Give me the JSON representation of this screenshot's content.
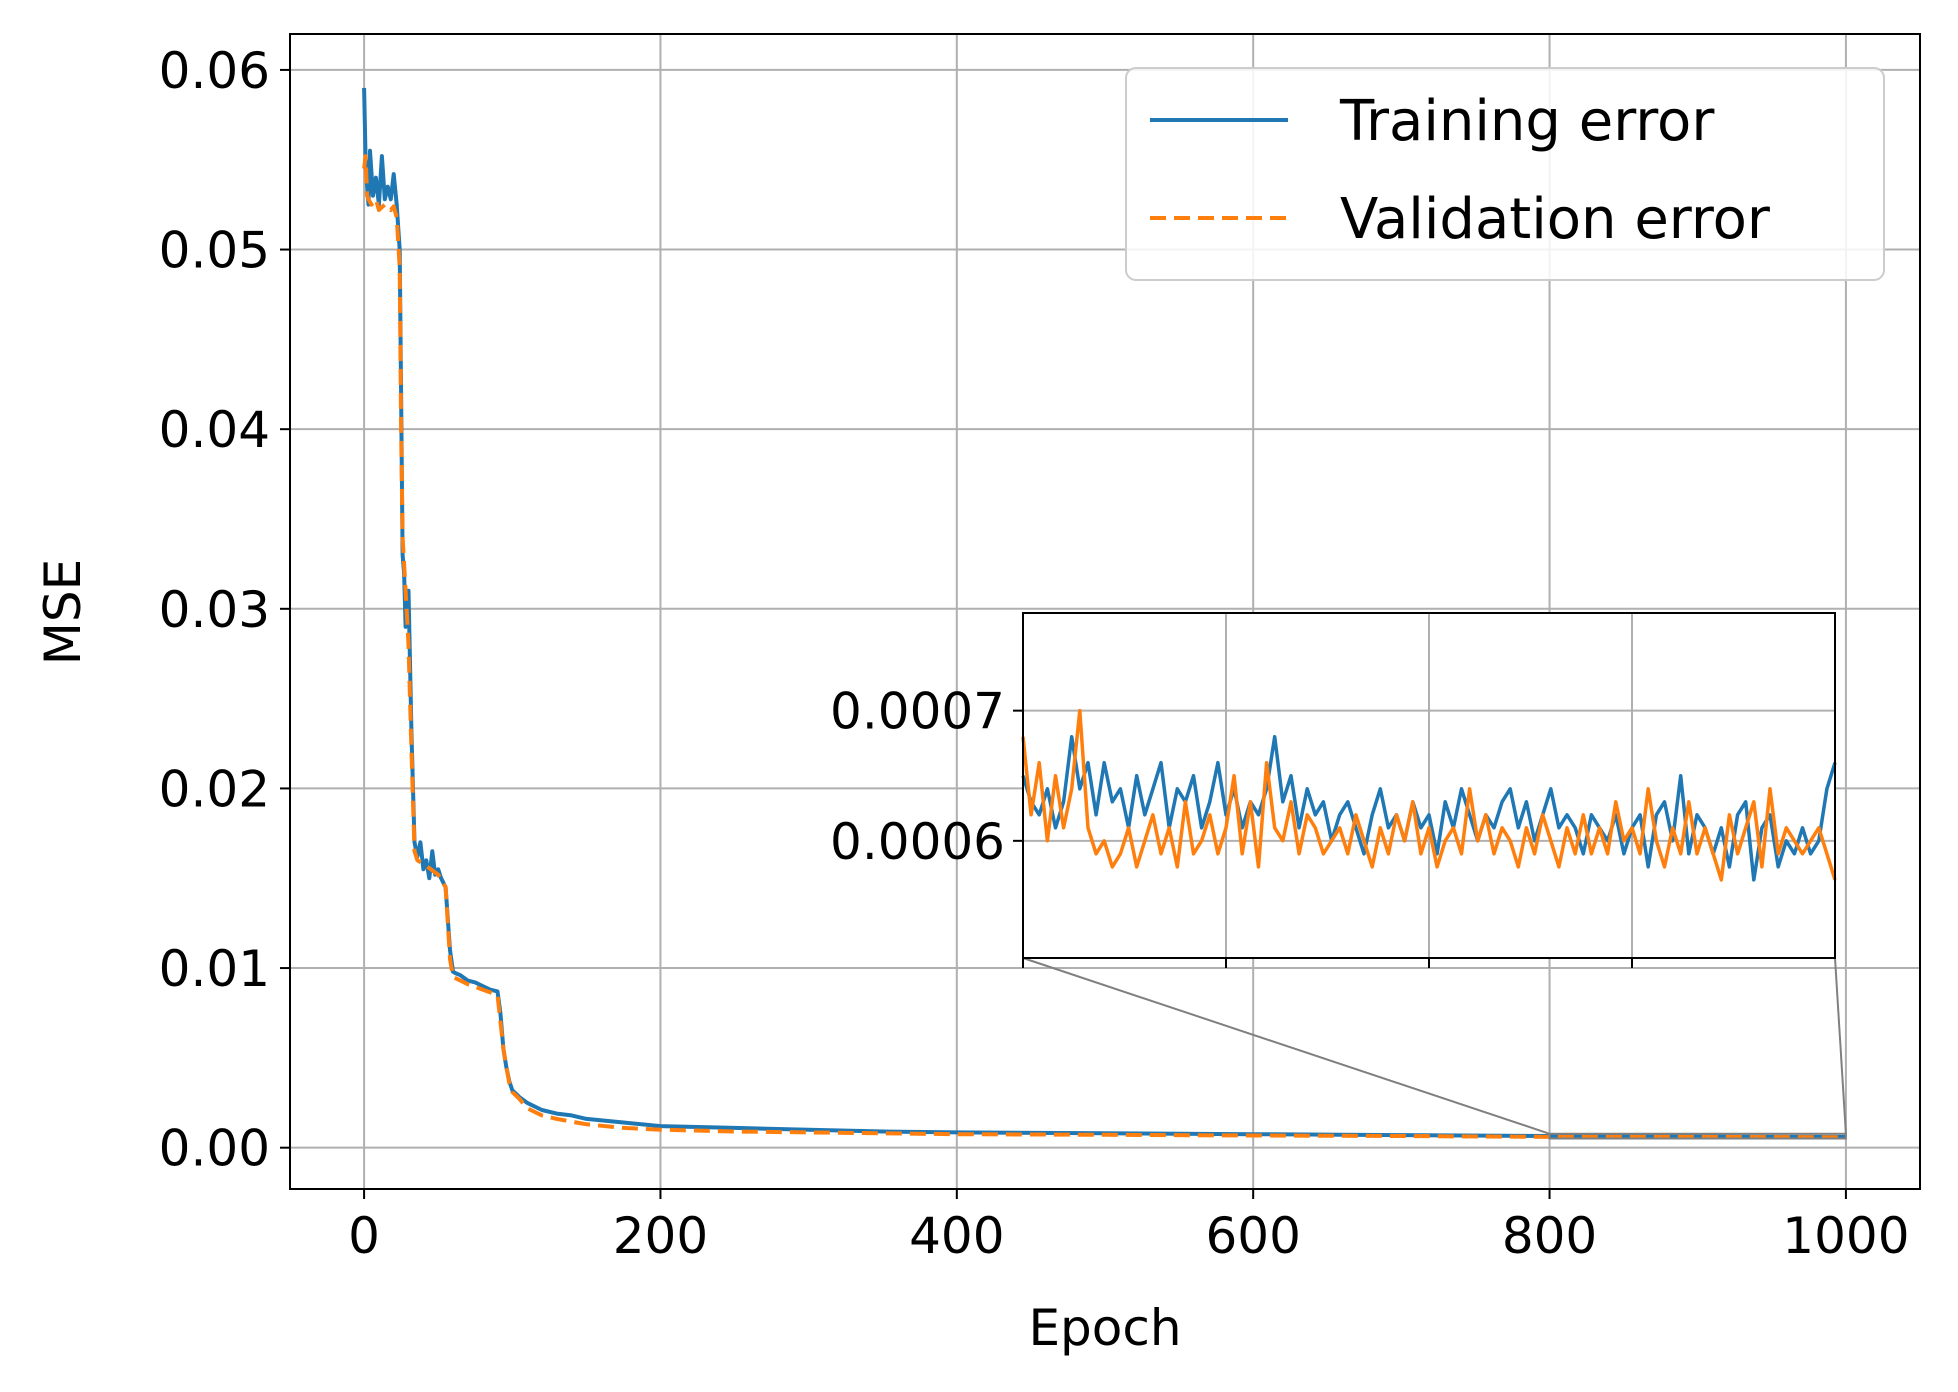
{
  "chart_data": {
    "type": "line",
    "title": "",
    "xlabel": "Epoch",
    "ylabel": "MSE",
    "xlim": [
      -50,
      1050
    ],
    "ylim": [
      -0.0023,
      0.062
    ],
    "grid": true,
    "xticks": [
      "0",
      "200",
      "400",
      "600",
      "800",
      "1000"
    ],
    "xtick_values": [
      0,
      200,
      400,
      600,
      800,
      1000
    ],
    "yticks": [
      "0.00",
      "0.01",
      "0.02",
      "0.03",
      "0.04",
      "0.05",
      "0.06"
    ],
    "ytick_values": [
      0,
      0.01,
      0.02,
      0.03,
      0.04,
      0.05,
      0.06
    ],
    "legend": {
      "position": "top-right",
      "entries": [
        "Training error",
        "Validation error"
      ]
    },
    "series": [
      {
        "name": "Training error",
        "color": "#1f77b4",
        "style": "solid",
        "x": [
          0,
          1,
          2,
          3,
          4,
          6,
          8,
          10,
          12,
          14,
          16,
          18,
          20,
          22,
          24,
          25,
          26,
          27,
          28,
          30,
          32,
          34,
          36,
          38,
          40,
          42,
          44,
          46,
          48,
          50,
          52,
          55,
          58,
          60,
          62,
          65,
          70,
          75,
          80,
          85,
          90,
          92,
          94,
          96,
          98,
          100,
          105,
          110,
          120,
          130,
          140,
          150,
          175,
          200,
          250,
          300,
          350,
          400,
          500,
          600,
          700,
          800,
          900,
          1000
        ],
        "values": [
          0.059,
          0.055,
          0.0535,
          0.0525,
          0.0555,
          0.053,
          0.054,
          0.0525,
          0.0552,
          0.0528,
          0.0535,
          0.0528,
          0.0542,
          0.0525,
          0.05,
          0.042,
          0.033,
          0.032,
          0.029,
          0.031,
          0.023,
          0.017,
          0.0162,
          0.017,
          0.0155,
          0.016,
          0.015,
          0.0165,
          0.0152,
          0.0155,
          0.015,
          0.0145,
          0.011,
          0.0098,
          0.0097,
          0.0096,
          0.0093,
          0.0092,
          0.009,
          0.0088,
          0.0087,
          0.0075,
          0.0055,
          0.0045,
          0.0037,
          0.0032,
          0.0028,
          0.0025,
          0.0021,
          0.0019,
          0.0018,
          0.0016,
          0.0014,
          0.0012,
          0.0011,
          0.001,
          0.0009,
          0.00085,
          0.0008,
          0.00075,
          0.0007,
          0.00065,
          0.00062,
          0.0006
        ]
      },
      {
        "name": "Validation error",
        "color": "#ff7f0e",
        "style": "dashed",
        "x": [
          0,
          1,
          2,
          3,
          5,
          8,
          10,
          14,
          18,
          20,
          22,
          24,
          25,
          26,
          28,
          30,
          32,
          34,
          36,
          40,
          45,
          50,
          55,
          58,
          60,
          65,
          70,
          80,
          90,
          94,
          96,
          98,
          100,
          105,
          110,
          120,
          130,
          150,
          175,
          200,
          250,
          300,
          350,
          400,
          500,
          600,
          700,
          800,
          900,
          1000
        ],
        "values": [
          0.0545,
          0.0552,
          0.053,
          0.0528,
          0.0525,
          0.0528,
          0.0522,
          0.0525,
          0.0522,
          0.0524,
          0.0518,
          0.049,
          0.04,
          0.034,
          0.031,
          0.028,
          0.022,
          0.0165,
          0.016,
          0.0158,
          0.0155,
          0.0152,
          0.0145,
          0.0105,
          0.0095,
          0.0093,
          0.0091,
          0.0088,
          0.0085,
          0.0055,
          0.0045,
          0.0036,
          0.0031,
          0.0027,
          0.0022,
          0.0018,
          0.0016,
          0.0013,
          0.0011,
          0.001,
          0.0009,
          0.00085,
          0.0008,
          0.00075,
          0.00072,
          0.00068,
          0.00065,
          0.0006,
          0.0006,
          0.00058
        ]
      }
    ],
    "inset": {
      "xlim": [
        800,
        1000
      ],
      "ylim": [
        0.00051,
        0.000775
      ],
      "ytick_values": [
        0.0006,
        0.0007
      ],
      "yticks": [
        "0.0006",
        "0.0007"
      ],
      "xtick_values": [
        850,
        900,
        950
      ],
      "grid": true,
      "series": [
        {
          "name": "Training error",
          "color": "#1f77b4",
          "x": [
            800,
            802,
            804,
            806,
            808,
            810,
            812,
            814,
            816,
            818,
            820,
            822,
            824,
            826,
            828,
            830,
            832,
            834,
            836,
            838,
            840,
            842,
            844,
            846,
            848,
            850,
            852,
            854,
            856,
            858,
            860,
            862,
            864,
            866,
            868,
            870,
            872,
            874,
            876,
            878,
            880,
            882,
            884,
            886,
            888,
            890,
            892,
            894,
            896,
            898,
            900,
            902,
            904,
            906,
            908,
            910,
            912,
            914,
            916,
            918,
            920,
            922,
            924,
            926,
            928,
            930,
            932,
            934,
            936,
            938,
            940,
            942,
            944,
            946,
            948,
            950,
            952,
            954,
            956,
            958,
            960,
            962,
            964,
            966,
            968,
            970,
            972,
            974,
            976,
            978,
            980,
            982,
            984,
            986,
            988,
            990,
            992,
            994,
            996,
            998,
            1000
          ],
          "values": [
            0.00065,
            0.00063,
            0.00062,
            0.00064,
            0.00061,
            0.00063,
            0.00068,
            0.00064,
            0.00066,
            0.00062,
            0.00066,
            0.00063,
            0.00064,
            0.00061,
            0.00065,
            0.00062,
            0.00064,
            0.00066,
            0.00061,
            0.00064,
            0.00063,
            0.00065,
            0.00061,
            0.00063,
            0.00066,
            0.00062,
            0.00064,
            0.00061,
            0.00063,
            0.00062,
            0.00064,
            0.00068,
            0.00063,
            0.00065,
            0.00061,
            0.00064,
            0.00062,
            0.00063,
            0.0006,
            0.00062,
            0.00063,
            0.00061,
            0.00059,
            0.00062,
            0.00064,
            0.00061,
            0.00062,
            0.0006,
            0.00063,
            0.00061,
            0.00062,
            0.00059,
            0.00063,
            0.00061,
            0.00064,
            0.00062,
            0.0006,
            0.00062,
            0.00061,
            0.00063,
            0.00064,
            0.00061,
            0.00063,
            0.0006,
            0.00062,
            0.00064,
            0.00061,
            0.00062,
            0.00061,
            0.00059,
            0.00062,
            0.00061,
            0.0006,
            0.00062,
            0.00059,
            0.00061,
            0.00062,
            0.00058,
            0.00062,
            0.00063,
            0.0006,
            0.00065,
            0.00059,
            0.00062,
            0.00061,
            0.00059,
            0.00061,
            0.00058,
            0.00062,
            0.00063,
            0.00057,
            0.00061,
            0.00062,
            0.00058,
            0.0006,
            0.00059,
            0.00061,
            0.00059,
            0.0006,
            0.00064,
            0.00066
          ]
        },
        {
          "name": "Validation error",
          "color": "#ff7f0e",
          "x": [
            800,
            802,
            804,
            806,
            808,
            810,
            812,
            814,
            816,
            818,
            820,
            822,
            824,
            826,
            828,
            830,
            832,
            834,
            836,
            838,
            840,
            842,
            844,
            846,
            848,
            850,
            852,
            854,
            856,
            858,
            860,
            862,
            864,
            866,
            868,
            870,
            872,
            874,
            876,
            878,
            880,
            882,
            884,
            886,
            888,
            890,
            892,
            894,
            896,
            898,
            900,
            902,
            904,
            906,
            908,
            910,
            912,
            914,
            916,
            918,
            920,
            922,
            924,
            926,
            928,
            930,
            932,
            934,
            936,
            938,
            940,
            942,
            944,
            946,
            948,
            950,
            952,
            954,
            956,
            958,
            960,
            962,
            964,
            966,
            968,
            970,
            972,
            974,
            976,
            978,
            980,
            982,
            984,
            986,
            988,
            990,
            992,
            994,
            996,
            998,
            1000
          ],
          "values": [
            0.00068,
            0.00062,
            0.00066,
            0.0006,
            0.00065,
            0.00061,
            0.00064,
            0.0007,
            0.00061,
            0.00059,
            0.0006,
            0.00058,
            0.00059,
            0.00061,
            0.00058,
            0.0006,
            0.00062,
            0.00059,
            0.00061,
            0.00058,
            0.00063,
            0.00059,
            0.0006,
            0.00062,
            0.00059,
            0.00061,
            0.00065,
            0.00059,
            0.00063,
            0.00058,
            0.00066,
            0.00061,
            0.0006,
            0.00063,
            0.00059,
            0.00062,
            0.00061,
            0.00059,
            0.0006,
            0.00061,
            0.00059,
            0.00062,
            0.0006,
            0.00058,
            0.00061,
            0.00059,
            0.00062,
            0.0006,
            0.00063,
            0.00059,
            0.00061,
            0.00058,
            0.0006,
            0.00061,
            0.00059,
            0.00064,
            0.0006,
            0.00062,
            0.00059,
            0.00061,
            0.0006,
            0.00058,
            0.00061,
            0.00059,
            0.00062,
            0.0006,
            0.00058,
            0.00061,
            0.00059,
            0.00062,
            0.00059,
            0.00061,
            0.00059,
            0.00063,
            0.0006,
            0.00061,
            0.00059,
            0.00064,
            0.0006,
            0.00058,
            0.00061,
            0.00059,
            0.00063,
            0.00059,
            0.00061,
            0.00059,
            0.00057,
            0.00062,
            0.00059,
            0.00061,
            0.00063,
            0.00058,
            0.00064,
            0.00059,
            0.00061,
            0.0006,
            0.00059,
            0.0006,
            0.00061,
            0.00059,
            0.00057
          ]
        }
      ]
    }
  }
}
